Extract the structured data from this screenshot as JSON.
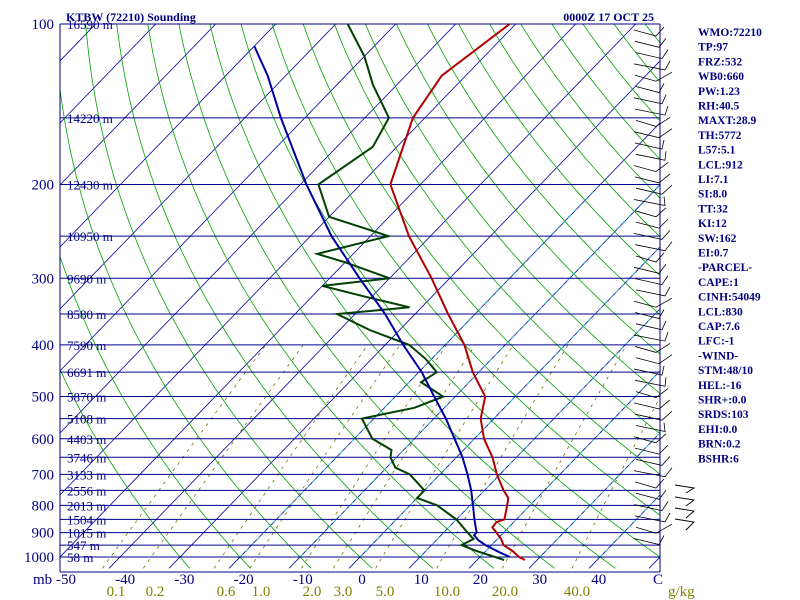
{
  "chart_data": {
    "type": "line",
    "title_left": "KTBW (72210) Sounding",
    "title_right": "0000Z 17 OCT 25",
    "x_unit_label": "mb",
    "mixing_ratio_unit": "g/kg",
    "pressure_ticks": [
      100,
      200,
      300,
      400,
      500,
      600,
      700,
      800,
      900,
      1000
    ],
    "height_labels": [
      {
        "p": 100,
        "text": "16590 m"
      },
      {
        "p": 150,
        "text": "14220 m"
      },
      {
        "p": 200,
        "text": "12430 m"
      },
      {
        "p": 250,
        "text": "10950 m"
      },
      {
        "p": 300,
        "text": "9690 m"
      },
      {
        "p": 350,
        "text": "8580 m"
      },
      {
        "p": 400,
        "text": "7590 m"
      },
      {
        "p": 450,
        "text": "6691 m"
      },
      {
        "p": 500,
        "text": "5870 m"
      },
      {
        "p": 550,
        "text": "5108 m"
      },
      {
        "p": 600,
        "text": "4403 m"
      },
      {
        "p": 650,
        "text": "3746 m"
      },
      {
        "p": 700,
        "text": "3133 m"
      },
      {
        "p": 750,
        "text": "2556 m"
      },
      {
        "p": 800,
        "text": "2013 m"
      },
      {
        "p": 850,
        "text": "1504 m"
      },
      {
        "p": 900,
        "text": "1015 m"
      },
      {
        "p": 950,
        "text": "547 m"
      },
      {
        "p": 1000,
        "text": "58 m"
      }
    ],
    "temperature_ticks": [
      -50,
      -40,
      -30,
      -20,
      -10,
      0,
      10,
      20,
      30,
      40,
      "C"
    ],
    "mixing_ratio_ticks": [
      "0.1",
      "0.2",
      "0.6",
      "1.0",
      "2.0",
      "3.0",
      "5.0",
      "10.0",
      "20.0",
      "40.0"
    ],
    "xlim": [
      -50,
      50
    ],
    "ylim": [
      1020,
      100
    ],
    "y_scale": "log",
    "grid": true,
    "series": [
      {
        "role": "temperature",
        "color": "#b00000",
        "points": [
          [
            1013,
            28
          ],
          [
            1000,
            26.5
          ],
          [
            975,
            24.5
          ],
          [
            950,
            22
          ],
          [
            925,
            20.6
          ],
          [
            900,
            18.8
          ],
          [
            880,
            17.3
          ],
          [
            860,
            17.1
          ],
          [
            850,
            18
          ],
          [
            800,
            16.2
          ],
          [
            775,
            15.2
          ],
          [
            750,
            13.2
          ],
          [
            700,
            9.5
          ],
          [
            650,
            6
          ],
          [
            600,
            1.6
          ],
          [
            550,
            -2.2
          ],
          [
            500,
            -5
          ],
          [
            450,
            -11
          ],
          [
            400,
            -16.8
          ],
          [
            350,
            -24.5
          ],
          [
            300,
            -33
          ],
          [
            250,
            -43.6
          ],
          [
            200,
            -55
          ],
          [
            150,
            -62
          ],
          [
            125,
            -64
          ],
          [
            100,
            -61
          ]
        ]
      },
      {
        "role": "dewpoint",
        "color": "#004000",
        "points": [
          [
            1013,
            24.5
          ],
          [
            1000,
            22.5
          ],
          [
            975,
            18.5
          ],
          [
            950,
            15
          ],
          [
            925,
            16
          ],
          [
            900,
            14
          ],
          [
            850,
            10
          ],
          [
            800,
            4.5
          ],
          [
            775,
            0
          ],
          [
            750,
            0
          ],
          [
            700,
            -5
          ],
          [
            680,
            -8.5
          ],
          [
            650,
            -11
          ],
          [
            630,
            -12
          ],
          [
            600,
            -17
          ],
          [
            550,
            -22
          ],
          [
            525,
            -15
          ],
          [
            500,
            -12
          ],
          [
            470,
            -18
          ],
          [
            450,
            -17
          ],
          [
            425,
            -21
          ],
          [
            400,
            -26
          ],
          [
            375,
            -35
          ],
          [
            350,
            -43
          ],
          [
            340,
            -32
          ],
          [
            325,
            -41
          ],
          [
            310,
            -50
          ],
          [
            300,
            -40
          ],
          [
            280,
            -50
          ],
          [
            270,
            -56
          ],
          [
            250,
            -47
          ],
          [
            230,
            -60
          ],
          [
            200,
            -67
          ],
          [
            170,
            -64
          ],
          [
            150,
            -66
          ],
          [
            130,
            -74
          ],
          [
            115,
            -80
          ],
          [
            100,
            -88
          ]
        ]
      },
      {
        "role": "parcel",
        "color": "#0000a0",
        "points": [
          [
            1000,
            25
          ],
          [
            980,
            22.5
          ],
          [
            950,
            19
          ],
          [
            930,
            17
          ],
          [
            910,
            15.5
          ],
          [
            900,
            15.5
          ],
          [
            850,
            13
          ],
          [
            800,
            10.5
          ],
          [
            750,
            7.8
          ],
          [
            700,
            4.6
          ],
          [
            650,
            1
          ],
          [
            600,
            -3.3
          ],
          [
            550,
            -8
          ],
          [
            500,
            -13.5
          ],
          [
            450,
            -19.5
          ],
          [
            400,
            -27
          ],
          [
            350,
            -35
          ],
          [
            300,
            -45
          ],
          [
            250,
            -56.5
          ],
          [
            200,
            -69
          ],
          [
            150,
            -84
          ],
          [
            125,
            -93
          ],
          [
            110,
            -100
          ]
        ]
      }
    ]
  },
  "indices": [
    "WMO:72210",
    "TP:97",
    "FRZ:532",
    "WB0:660",
    "PW:1.23",
    "RH:40.5",
    "MAXT:28.9",
    "TH:5772",
    "L57:5.1",
    "LCL:912",
    "LI:7.1",
    "SI:8.0",
    "TT:32",
    "KI:12",
    "SW:162",
    "EI:0.7",
    "-PARCEL-",
    "CAPE:1",
    "CINH:54049",
    "LCL:830",
    "CAP:7.6",
    "LFC:-1",
    "-WIND-",
    "STM:48/10",
    "HEL:-16",
    "SHR+:0.0",
    "SRDS:103",
    "EHI:0.0",
    "BRN:0.2",
    "BSHR:6"
  ],
  "colors": {
    "temperature": "#b00000",
    "dewpoint": "#004000",
    "parcel": "#0000a0",
    "isobar": "#00008b",
    "isotherm": "#0000a0",
    "dry_adiabat": "#00a000",
    "moist_adiabat": "#30c0d0",
    "mixing_ratio": "#707000",
    "text": "#000080",
    "wlab": "#808000"
  }
}
